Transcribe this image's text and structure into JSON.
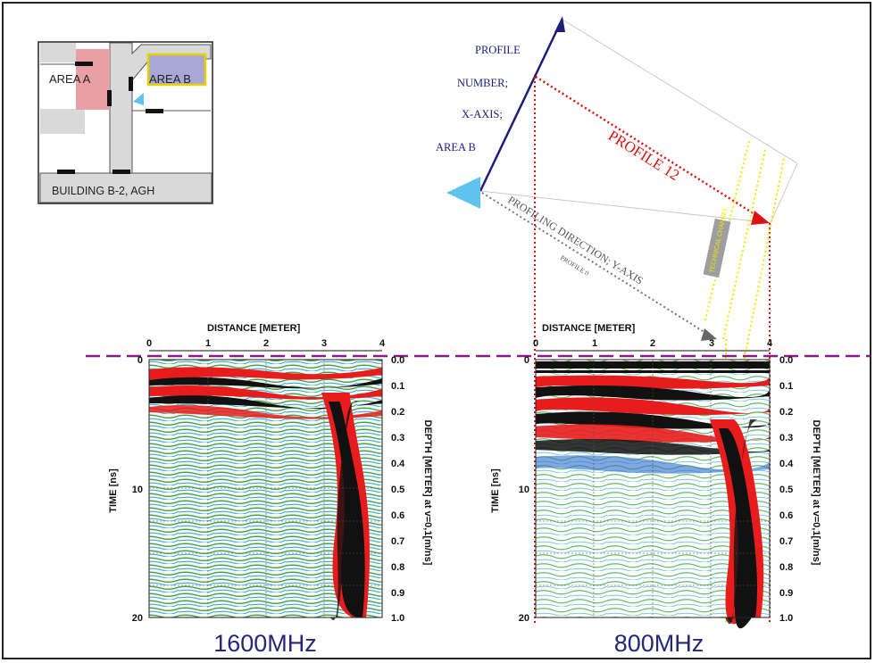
{
  "map": {
    "area_a": "AREA A",
    "area_b": "AREA B",
    "building": "BUILDING B-2, AGH"
  },
  "orientation": {
    "profile_number_axis": [
      "PROFILE",
      "NUMBER;",
      "X-AXIS;",
      "AREA B"
    ],
    "profile_12": "PROFILE 12",
    "profiling_direction": "PROFILING DIRECTION; Y-AXIS",
    "profile_0": "PROFILE 0",
    "boxed_label": "TECHNICAL CHANNEL"
  },
  "colors": {
    "area_a_fill": "#e8a0a6",
    "area_b_fill": "#a9a7d6",
    "area_b_outline": "#e6d200",
    "marker": "#5ec3ee",
    "axis_arrow": "#1c1e78",
    "profile_12": "#dd1111",
    "dashed_line": "#8a1a8a",
    "yellow_dots": "#f2e600",
    "freq_label": "#26267a"
  },
  "radargram_left": {
    "x_title": "DISTANCE [METER]",
    "x_ticks": [
      "0",
      "1",
      "2",
      "3",
      "4"
    ],
    "time_label": "TIME [ns]",
    "time_ticks": [
      "0",
      "10",
      "20"
    ],
    "depth_label": "DEPTH [METER] at v=0,1[m/ns]",
    "depth_ticks": [
      "0.0",
      "0.1",
      "0.2",
      "0.3",
      "0.4",
      "0.5",
      "0.6",
      "0.7",
      "0.8",
      "0.9",
      "1.0"
    ],
    "frequency": "1600MHz"
  },
  "radargram_right": {
    "x_title": "DISTANCE [METER]",
    "x_ticks": [
      "0",
      "1",
      "2",
      "3",
      "4"
    ],
    "time_label": "TIME [ns]",
    "time_ticks": [
      "0",
      "10",
      "20"
    ],
    "depth_label": "DEPTH [METER] at v=0,1[m/ns]",
    "depth_ticks": [
      "0.0",
      "0.1",
      "0.2",
      "0.3",
      "0.4",
      "0.5",
      "0.6",
      "0.7",
      "0.8",
      "0.9",
      "1.0"
    ],
    "frequency": "800MHz"
  }
}
